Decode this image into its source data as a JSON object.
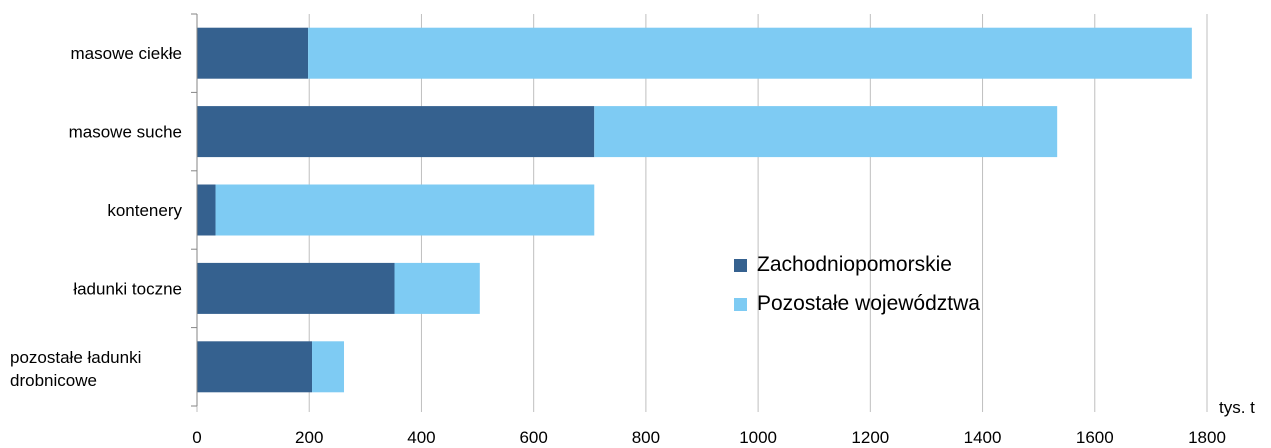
{
  "chart_data": {
    "type": "bar",
    "orientation": "horizontal",
    "stacked": true,
    "categories": [
      "masowe ciekłe",
      "masowe suche",
      "kontenery",
      "ładunki toczne",
      "pozostałe ładunki drobnicowe"
    ],
    "series": [
      {
        "name": "Zachodniopomorskie",
        "values": [
          198,
          708,
          33,
          352,
          205
        ],
        "color": "#35618f"
      },
      {
        "name": "Pozostałe województwa",
        "values": [
          1575,
          825,
          675,
          152,
          57
        ],
        "color": "#7ecbf3"
      }
    ],
    "xlim": [
      0,
      1800
    ],
    "xticks": [
      "0",
      "200",
      "400",
      "600",
      "800",
      "1000",
      "1200",
      "1400",
      "1600",
      "1800"
    ],
    "unit_label": "tys. t",
    "grid": "vertical",
    "legend_position": "inside-right"
  }
}
